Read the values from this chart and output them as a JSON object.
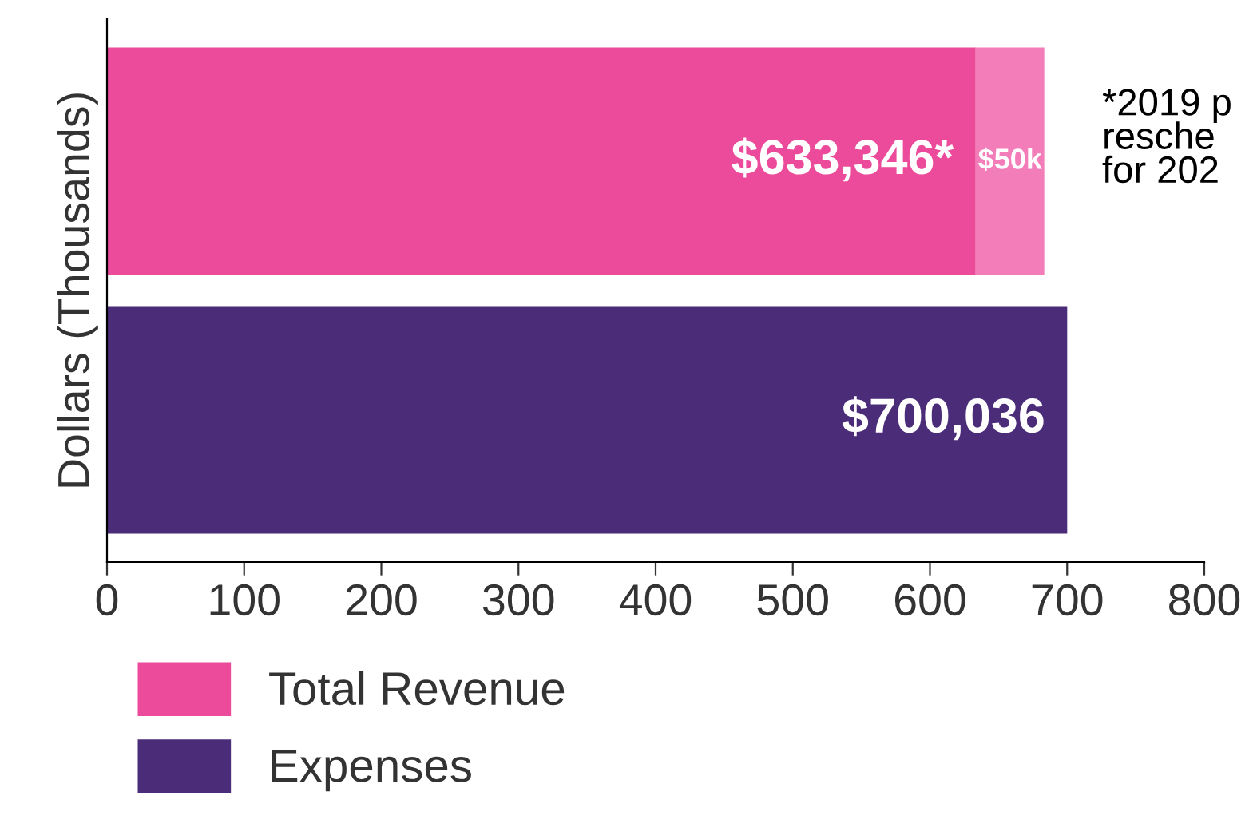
{
  "chart_data": {
    "type": "bar",
    "orientation": "horizontal",
    "stacked": true,
    "ylabel": "Dollars (Thousands)",
    "categories": [
      null,
      null
    ],
    "series": [
      {
        "name": "Total Revenue",
        "color": "#ec4a9a",
        "values": [
          633.346,
          null
        ]
      },
      {
        "color": "#f27db8",
        "values": [
          50,
          null
        ],
        "value_labels": [
          "$50k",
          null
        ]
      },
      {
        "name": "Expenses",
        "color": "#4b2c79",
        "values": [
          null,
          700.036
        ]
      }
    ],
    "xlim": [
      0,
      800
    ],
    "xticks": [
      0,
      100,
      200,
      300,
      400,
      500,
      600,
      700,
      800
    ],
    "annotations": [
      {
        "text": "$633,346*",
        "x": 633.346
      },
      {
        "text": "$700,036",
        "x": 700.036
      },
      "*2019 p\nresche\nfor 202"
    ],
    "legend": "bottom",
    "grid": false
  }
}
